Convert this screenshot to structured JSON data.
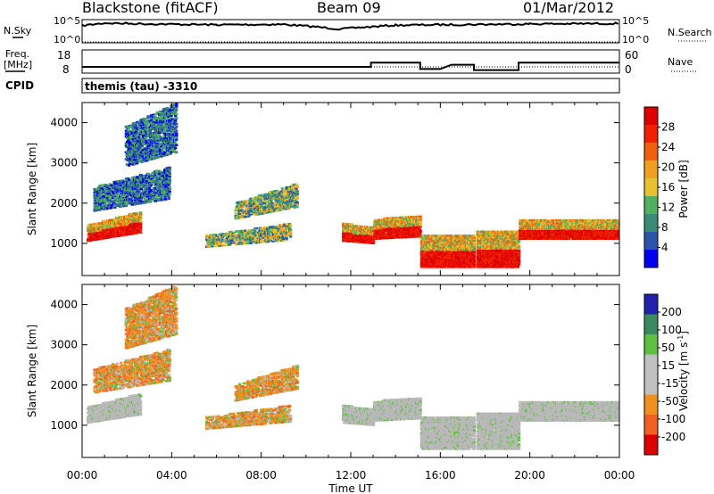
{
  "header": {
    "radar": "Blackstone (fitACF)",
    "beam": "Beam 09",
    "date": "01/Mar/2012"
  },
  "panels": {
    "nsky_label": "N.Sky",
    "nsearch_label": "N.Search",
    "noise_tick_top": "10^5",
    "noise_tick_bottom": "10^0",
    "freq_label_1": "Freq.",
    "freq_label_2": "[MHz]",
    "freq_ticks": [
      "18",
      "8"
    ],
    "nave_label": "Nave",
    "nave_ticks": [
      "60",
      "0"
    ],
    "cpid_label": "CPID",
    "cpid_value": "themis (tau) -3310"
  },
  "axes": {
    "ylabel": "Slant Range [km]",
    "xlabel": "Time UT",
    "yticks": [
      "1000",
      "2000",
      "3000",
      "4000"
    ],
    "xticks": [
      "00:00",
      "04:00",
      "08:00",
      "12:00",
      "16:00",
      "20:00",
      "00:00"
    ]
  },
  "colorbars": {
    "power_label": "Power [dB]",
    "power_ticks": [
      "28",
      "24",
      "20",
      "16",
      "12",
      "8",
      "4"
    ],
    "velocity_label_main": "Velocity [m s",
    "velocity_label_sup": "-1",
    "velocity_label_end": "]",
    "velocity_ticks": [
      "200",
      "100",
      "50",
      "15",
      "-15",
      "-50",
      "-100",
      "-200"
    ]
  },
  "colors": {
    "power_scale": [
      "#0000ee",
      "#2a55aa",
      "#3a8a78",
      "#50b060",
      "#e8c030",
      "#f0a020",
      "#f06010",
      "#f02000",
      "#dd0000"
    ],
    "velocity_scale": [
      "#dd0000",
      "#f06020",
      "#f09020",
      "#c0c0c0",
      "#c0c0c0",
      "#60c040",
      "#3a8a60",
      "#2020aa"
    ],
    "ground_scatter": "#b8b8b8"
  },
  "chart_data": {
    "type": "heatmap",
    "x_units": "hours UT",
    "xlim": [
      0,
      24
    ],
    "y_units": "km",
    "ylim": [
      200,
      4500
    ],
    "nsky_profile": [
      [
        0,
        3.8
      ],
      [
        1,
        4.4
      ],
      [
        3,
        4.2
      ],
      [
        6,
        4.0
      ],
      [
        9,
        4.1
      ],
      [
        10.5,
        3.5
      ],
      [
        11.5,
        3.0
      ],
      [
        12.5,
        3.4
      ],
      [
        14,
        3.9
      ],
      [
        16,
        4.0
      ],
      [
        20,
        4.2
      ],
      [
        24,
        4.3
      ]
    ],
    "freq_profile_mhz": [
      [
        0,
        10.5
      ],
      [
        12.9,
        10.5
      ],
      [
        12.9,
        12.5
      ],
      [
        15.1,
        12.5
      ],
      [
        15.1,
        9.5
      ],
      [
        16,
        9.5
      ],
      [
        16.5,
        11.5
      ],
      [
        17.5,
        11.5
      ],
      [
        17.5,
        9.0
      ],
      [
        19.5,
        9.0
      ],
      [
        19.5,
        12.5
      ],
      [
        24,
        12.5
      ]
    ],
    "scatter_regions": [
      {
        "t0": 0.2,
        "t1": 2.6,
        "r0": 1050,
        "r1": 1450,
        "r1_end": 1800,
        "kind": "ground",
        "power": "high"
      },
      {
        "t0": 0.5,
        "t1": 3.9,
        "r0": 1800,
        "r1": 2400,
        "r1_end": 2900,
        "kind": "ionospheric",
        "power": "low"
      },
      {
        "t0": 1.9,
        "t1": 4.2,
        "r0": 2900,
        "r1": 3900,
        "r1_end": 4500,
        "kind": "ionospheric",
        "power": "low"
      },
      {
        "t0": 5.5,
        "t1": 9.3,
        "r0": 900,
        "r1": 1200,
        "r1_end": 1500,
        "kind": "ionospheric",
        "power": "mid"
      },
      {
        "t0": 6.8,
        "t1": 9.6,
        "r0": 1600,
        "r1": 2000,
        "r1_end": 2500,
        "kind": "ionospheric",
        "power": "mid"
      },
      {
        "t0": 11.6,
        "t1": 13.0,
        "r0": 1050,
        "r1": 1500,
        "r1_end": 1400,
        "kind": "ground",
        "power": "high"
      },
      {
        "t0": 13.0,
        "t1": 15.1,
        "r0": 1100,
        "r1": 1600,
        "r1_end": 1700,
        "kind": "ground",
        "power": "high"
      },
      {
        "t0": 15.1,
        "t1": 17.5,
        "r0": 400,
        "r1": 1200,
        "r1_end": 1200,
        "kind": "ground",
        "power": "high"
      },
      {
        "t0": 17.6,
        "t1": 19.5,
        "r0": 400,
        "r1": 1300,
        "r1_end": 1300,
        "kind": "ground",
        "power": "high"
      },
      {
        "t0": 19.5,
        "t1": 24.0,
        "r0": 1100,
        "r1": 1600,
        "r1_end": 1600,
        "kind": "ground",
        "power": "high"
      }
    ]
  }
}
